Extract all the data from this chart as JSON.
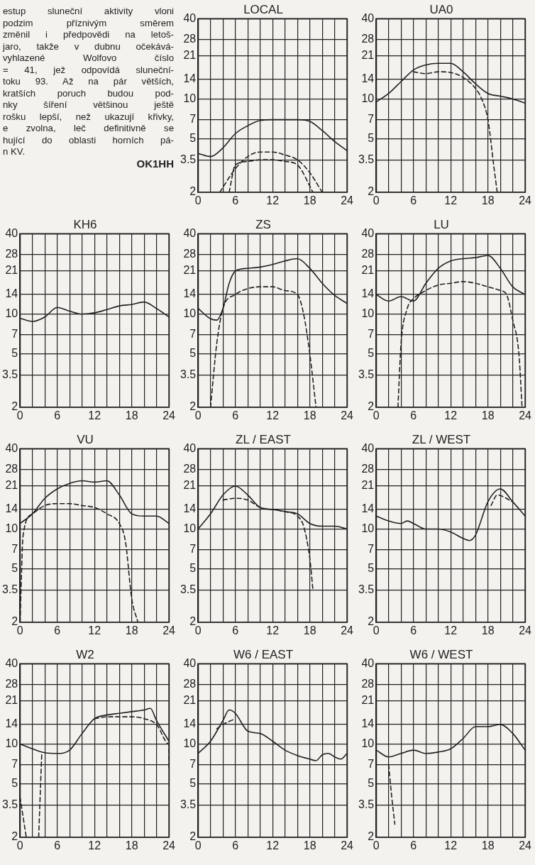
{
  "chart_data": [
    {
      "type": "other",
      "annotations": [
        "estup sluneční aktivity vloni",
        "podzim příznivým směrem",
        "změnil i předpovědi na letoš-",
        "jaro, takže v dubnu očekává-",
        "vyhlazené Wolfovo číslo",
        "= 41, jež odpovídá sluneční-",
        "toku 93. Až na pár větších,",
        "kratších poruch budou pod-",
        "nky šíření většinou ještě",
        "rošku lepší, než ukazují křivky,",
        "e zvolna, leč definitivně se",
        "hující do oblasti horních pá-",
        "n KV.",
        "OK1HH"
      ]
    },
    {
      "type": "line",
      "title": "LOCAL",
      "xlim": [
        0,
        24
      ],
      "ylim": [
        2,
        40
      ],
      "log": "y",
      "grid": true,
      "marker": "none",
      "xticks": [
        0,
        {
          "value": 2,
          "label": null
        },
        {
          "value": 4,
          "label": null
        },
        6,
        {
          "value": 8,
          "label": null
        },
        {
          "value": 10,
          "label": null
        },
        12,
        {
          "value": 14,
          "label": null
        },
        {
          "value": 16,
          "label": null
        },
        18,
        {
          "value": 20,
          "label": null
        },
        {
          "value": 22,
          "label": null
        },
        24
      ],
      "yticks": [
        2,
        3.5,
        5,
        7,
        10,
        14,
        21,
        28,
        40
      ],
      "series": [
        {
          "color": "#222222",
          "line_style": "solid",
          "x": [
            0,
            2,
            4,
            6,
            8,
            10,
            12,
            14,
            16,
            18,
            20,
            22,
            24
          ],
          "values": [
            3.9,
            3.7,
            4.3,
            5.5,
            6.3,
            6.9,
            7,
            7,
            7,
            6.8,
            5.8,
            4.8,
            4.1
          ]
        },
        {
          "color": "#222222",
          "line_style": "dashed",
          "x": [
            3.5,
            6,
            8,
            10,
            12,
            14,
            16,
            18,
            20
          ],
          "values": [
            2,
            3,
            3.7,
            4,
            4,
            3.8,
            3.5,
            2.8,
            2
          ]
        },
        {
          "color": "#222222",
          "line_style": "dashed",
          "x": [
            5,
            6,
            8,
            10,
            12,
            14,
            16,
            18.5
          ],
          "values": [
            2,
            3.2,
            3.4,
            3.5,
            3.5,
            3.4,
            3.2,
            2
          ]
        }
      ]
    },
    {
      "type": "line",
      "title": "UA0",
      "xlim": [
        0,
        24
      ],
      "ylim": [
        2,
        40
      ],
      "log": "y",
      "grid": true,
      "marker": "none",
      "xticks": [
        0,
        {
          "value": 2,
          "label": null
        },
        {
          "value": 4,
          "label": null
        },
        6,
        {
          "value": 8,
          "label": null
        },
        {
          "value": 10,
          "label": null
        },
        12,
        {
          "value": 14,
          "label": null
        },
        {
          "value": 16,
          "label": null
        },
        18,
        {
          "value": 20,
          "label": null
        },
        {
          "value": 22,
          "label": null
        },
        24
      ],
      "yticks": [
        2,
        3.5,
        5,
        7,
        10,
        14,
        21,
        28,
        40
      ],
      "series": [
        {
          "color": "#222222",
          "line_style": "solid",
          "x": [
            0,
            2,
            4,
            6,
            8,
            10,
            12,
            14,
            16,
            18,
            20,
            22,
            24
          ],
          "values": [
            9.5,
            11,
            13.5,
            16.5,
            18,
            18.5,
            18.5,
            16,
            13,
            11,
            10.5,
            10,
            9.3
          ]
        },
        {
          "color": "#222222",
          "line_style": "dashed",
          "x": [
            6,
            8,
            10,
            12,
            14,
            16,
            17,
            18,
            19,
            19.5
          ],
          "values": [
            16,
            15.5,
            16,
            15.8,
            14.5,
            12,
            10,
            7,
            3,
            2
          ]
        }
      ]
    },
    {
      "type": "line",
      "title": "KH6",
      "xlim": [
        0,
        24
      ],
      "ylim": [
        2,
        40
      ],
      "log": "y",
      "grid": true,
      "marker": "none",
      "xticks": [
        0,
        {
          "value": 2,
          "label": null
        },
        {
          "value": 4,
          "label": null
        },
        6,
        {
          "value": 8,
          "label": null
        },
        {
          "value": 10,
          "label": null
        },
        12,
        {
          "value": 14,
          "label": null
        },
        {
          "value": 16,
          "label": null
        },
        18,
        {
          "value": 20,
          "label": null
        },
        {
          "value": 22,
          "label": null
        },
        24
      ],
      "yticks": [
        2,
        3.5,
        5,
        7,
        10,
        14,
        21,
        28,
        40
      ],
      "series": [
        {
          "color": "#222222",
          "line_style": "solid",
          "x": [
            0,
            2,
            4,
            6,
            8,
            10,
            12,
            14,
            16,
            18,
            20,
            22,
            24
          ],
          "values": [
            9.3,
            8.8,
            9.5,
            11.2,
            10.5,
            10,
            10.2,
            10.8,
            11.5,
            11.8,
            12.3,
            11,
            9.5
          ]
        }
      ]
    },
    {
      "type": "line",
      "title": "ZS",
      "xlim": [
        0,
        24
      ],
      "ylim": [
        2,
        40
      ],
      "log": "y",
      "grid": true,
      "marker": "none",
      "xticks": [
        0,
        {
          "value": 2,
          "label": null
        },
        {
          "value": 4,
          "label": null
        },
        6,
        {
          "value": 8,
          "label": null
        },
        {
          "value": 10,
          "label": null
        },
        12,
        {
          "value": 14,
          "label": null
        },
        {
          "value": 16,
          "label": null
        },
        18,
        {
          "value": 20,
          "label": null
        },
        {
          "value": 22,
          "label": null
        },
        24
      ],
      "yticks": [
        2,
        3.5,
        5,
        7,
        10,
        14,
        21,
        28,
        40
      ],
      "series": [
        {
          "color": "#222222",
          "line_style": "solid",
          "x": [
            0,
            2,
            3,
            4,
            5,
            6,
            8,
            10,
            12,
            14,
            16,
            18,
            20,
            22,
            24
          ],
          "values": [
            11,
            9.2,
            9,
            11,
            17,
            21,
            22,
            22.5,
            23.5,
            25,
            26,
            22,
            17,
            13.8,
            12
          ]
        },
        {
          "color": "#222222",
          "line_style": "dashed",
          "x": [
            2,
            3,
            4,
            6,
            8,
            10,
            12,
            14,
            16,
            17,
            18,
            19
          ],
          "values": [
            2,
            6,
            11,
            14,
            15.5,
            16,
            16,
            15,
            14,
            10,
            5,
            2
          ]
        }
      ]
    },
    {
      "type": "line",
      "title": "LU",
      "xlim": [
        0,
        24
      ],
      "ylim": [
        2,
        40
      ],
      "log": "y",
      "grid": true,
      "marker": "none",
      "xticks": [
        0,
        {
          "value": 2,
          "label": null
        },
        {
          "value": 4,
          "label": null
        },
        6,
        {
          "value": 8,
          "label": null
        },
        {
          "value": 10,
          "label": null
        },
        12,
        {
          "value": 14,
          "label": null
        },
        {
          "value": 16,
          "label": null
        },
        18,
        {
          "value": 20,
          "label": null
        },
        {
          "value": 22,
          "label": null
        },
        24
      ],
      "yticks": [
        2,
        3.5,
        5,
        7,
        10,
        14,
        21,
        28,
        40
      ],
      "series": [
        {
          "color": "#222222",
          "line_style": "solid",
          "x": [
            0,
            2,
            4,
            6,
            8,
            10,
            12,
            14,
            16,
            18,
            20,
            22,
            24
          ],
          "values": [
            14,
            12.5,
            13.5,
            12.5,
            17,
            22,
            25,
            26,
            26.5,
            27.5,
            22,
            16,
            14
          ]
        },
        {
          "color": "#222222",
          "line_style": "dashed",
          "x": [
            3.5,
            4,
            5,
            6,
            8,
            10,
            12,
            14,
            16,
            18,
            20,
            21,
            22,
            23,
            23.5
          ],
          "values": [
            2,
            6,
            11,
            13,
            15,
            16.5,
            17,
            17.5,
            17,
            16,
            15,
            14,
            9,
            5,
            2
          ]
        }
      ]
    },
    {
      "type": "line",
      "title": "VU",
      "xlim": [
        0,
        24
      ],
      "ylim": [
        2,
        40
      ],
      "log": "y",
      "grid": true,
      "marker": "none",
      "xticks": [
        0,
        {
          "value": 2,
          "label": null
        },
        {
          "value": 4,
          "label": null
        },
        6,
        {
          "value": 8,
          "label": null
        },
        {
          "value": 10,
          "label": null
        },
        12,
        {
          "value": 14,
          "label": null
        },
        {
          "value": 16,
          "label": null
        },
        18,
        {
          "value": 20,
          "label": null
        },
        {
          "value": 22,
          "label": null
        },
        24
      ],
      "yticks": [
        2,
        3.5,
        5,
        7,
        10,
        14,
        21,
        28,
        40
      ],
      "series": [
        {
          "color": "#222222",
          "line_style": "solid",
          "x": [
            0,
            2,
            4,
            6,
            8,
            10,
            12,
            14,
            16,
            18,
            20,
            22,
            24
          ],
          "values": [
            11,
            13,
            17,
            20,
            22,
            23,
            22.5,
            23,
            18,
            13,
            12.5,
            12.5,
            11
          ]
        },
        {
          "color": "#222222",
          "line_style": "dashed",
          "x": [
            0,
            0.5,
            2,
            4,
            6,
            8,
            10,
            12,
            14,
            16,
            17,
            18,
            19
          ],
          "values": [
            2,
            9,
            13,
            15,
            15.5,
            15.5,
            15,
            14.5,
            13,
            11,
            8,
            3,
            2
          ]
        }
      ]
    },
    {
      "type": "line",
      "title": "ZL / EAST",
      "xlim": [
        0,
        24
      ],
      "ylim": [
        2,
        40
      ],
      "log": "y",
      "grid": true,
      "marker": "none",
      "xticks": [
        0,
        {
          "value": 2,
          "label": null
        },
        {
          "value": 4,
          "label": null
        },
        6,
        {
          "value": 8,
          "label": null
        },
        {
          "value": 10,
          "label": null
        },
        12,
        {
          "value": 14,
          "label": null
        },
        {
          "value": 16,
          "label": null
        },
        18,
        {
          "value": 20,
          "label": null
        },
        {
          "value": 22,
          "label": null
        },
        24
      ],
      "yticks": [
        2,
        3.5,
        5,
        7,
        10,
        14,
        21,
        28,
        40
      ],
      "series": [
        {
          "color": "#222222",
          "line_style": "solid",
          "x": [
            0,
            2,
            4,
            6,
            8,
            10,
            12,
            14,
            16,
            18,
            20,
            22,
            24
          ],
          "values": [
            10,
            13,
            18,
            21,
            18,
            14.5,
            14,
            13.5,
            13,
            11,
            10.5,
            10.5,
            10
          ]
        },
        {
          "color": "#222222",
          "line_style": "dashed",
          "x": [
            4,
            6,
            8,
            10,
            12,
            14,
            16,
            17,
            18,
            18.5
          ],
          "values": [
            16.5,
            17,
            16.5,
            14.5,
            14,
            13.5,
            12.5,
            10.5,
            6,
            3.5
          ]
        }
      ]
    },
    {
      "type": "line",
      "title": "ZL / WEST",
      "xlim": [
        0,
        24
      ],
      "ylim": [
        2,
        40
      ],
      "log": "y",
      "grid": true,
      "marker": "none",
      "xticks": [
        0,
        {
          "value": 2,
          "label": null
        },
        {
          "value": 4,
          "label": null
        },
        6,
        {
          "value": 8,
          "label": null
        },
        {
          "value": 10,
          "label": null
        },
        12,
        {
          "value": 14,
          "label": null
        },
        {
          "value": 16,
          "label": null
        },
        18,
        {
          "value": 20,
          "label": null
        },
        {
          "value": 22,
          "label": null
        },
        24
      ],
      "yticks": [
        2,
        3.5,
        5,
        7,
        10,
        14,
        21,
        28,
        40
      ],
      "series": [
        {
          "color": "#222222",
          "line_style": "solid",
          "x": [
            0,
            2,
            4,
            5,
            6,
            8,
            10,
            12,
            14,
            15,
            16,
            18,
            20,
            22,
            24
          ],
          "values": [
            12.5,
            11.5,
            11,
            11.5,
            11,
            10,
            10,
            9.5,
            8.5,
            8.2,
            9,
            16,
            20,
            16,
            12.5
          ]
        },
        {
          "color": "#222222",
          "line_style": "dashed",
          "x": [
            18.5,
            19.5,
            22
          ],
          "values": [
            15,
            18,
            16
          ]
        }
      ]
    },
    {
      "type": "line",
      "title": "W2",
      "xlim": [
        0,
        24
      ],
      "ylim": [
        2,
        40
      ],
      "log": "y",
      "grid": true,
      "marker": "none",
      "xticks": [
        0,
        {
          "value": 2,
          "label": null
        },
        {
          "value": 4,
          "label": null
        },
        6,
        {
          "value": 8,
          "label": null
        },
        {
          "value": 10,
          "label": null
        },
        12,
        {
          "value": 14,
          "label": null
        },
        {
          "value": 16,
          "label": null
        },
        18,
        {
          "value": 20,
          "label": null
        },
        {
          "value": 22,
          "label": null
        },
        24
      ],
      "yticks": [
        2,
        3.5,
        5,
        7,
        10,
        14,
        21,
        28,
        40
      ],
      "series": [
        {
          "color": "#222222",
          "line_style": "solid",
          "x": [
            0,
            2,
            4,
            6,
            8,
            10,
            12,
            14,
            16,
            18,
            20,
            21,
            22,
            24
          ],
          "values": [
            10,
            9.2,
            8.6,
            8.5,
            9,
            12,
            15.5,
            16.5,
            17,
            17.5,
            18,
            18.5,
            15,
            10.5
          ]
        },
        {
          "color": "#222222",
          "line_style": "dashed",
          "x": [
            12,
            14,
            16,
            18,
            20,
            22,
            24,
            24
          ],
          "values": [
            15.5,
            16,
            16,
            16,
            15.5,
            14,
            10,
            6.5
          ]
        },
        {
          "color": "#222222",
          "line_style": "dashed",
          "x": [
            0,
            1
          ],
          "values": [
            4,
            2
          ]
        },
        {
          "color": "#222222",
          "line_style": "dashed",
          "x": [
            3,
            3.5
          ],
          "values": [
            2,
            8.5
          ]
        }
      ]
    },
    {
      "type": "line",
      "title": "W6 / EAST",
      "xlim": [
        0,
        24
      ],
      "ylim": [
        2,
        40
      ],
      "log": "y",
      "grid": true,
      "marker": "none",
      "xticks": [
        0,
        {
          "value": 2,
          "label": null
        },
        {
          "value": 4,
          "label": null
        },
        6,
        {
          "value": 8,
          "label": null
        },
        {
          "value": 10,
          "label": null
        },
        12,
        {
          "value": 14,
          "label": null
        },
        {
          "value": 16,
          "label": null
        },
        18,
        {
          "value": 20,
          "label": null
        },
        {
          "value": 22,
          "label": null
        },
        24
      ],
      "yticks": [
        2,
        3.5,
        5,
        7,
        10,
        14,
        21,
        28,
        40
      ],
      "series": [
        {
          "color": "#222222",
          "line_style": "solid",
          "x": [
            0,
            2,
            4,
            5,
            6,
            8,
            10,
            12,
            14,
            16,
            18,
            19,
            20,
            21,
            22,
            23,
            24
          ],
          "values": [
            8.5,
            10.5,
            15,
            18,
            17,
            12.5,
            12,
            10.5,
            9,
            8.2,
            7.7,
            7.5,
            8.3,
            8.5,
            8,
            7.7,
            8.5
          ]
        },
        {
          "color": "#222222",
          "line_style": "dashed",
          "x": [
            3,
            4,
            6
          ],
          "values": [
            13,
            14,
            15.5
          ]
        }
      ]
    },
    {
      "type": "line",
      "title": "W6 / WEST",
      "xlim": [
        0,
        24
      ],
      "ylim": [
        2,
        40
      ],
      "log": "y",
      "grid": true,
      "marker": "none",
      "xticks": [
        0,
        {
          "value": 2,
          "label": null
        },
        {
          "value": 4,
          "label": null
        },
        6,
        {
          "value": 8,
          "label": null
        },
        {
          "value": 10,
          "label": null
        },
        12,
        {
          "value": 14,
          "label": null
        },
        {
          "value": 16,
          "label": null
        },
        18,
        {
          "value": 20,
          "label": null
        },
        {
          "value": 22,
          "label": null
        },
        24
      ],
      "yticks": [
        2,
        3.5,
        5,
        7,
        10,
        14,
        21,
        28,
        40
      ],
      "series": [
        {
          "color": "#222222",
          "line_style": "solid",
          "x": [
            0,
            2,
            4,
            6,
            8,
            10,
            12,
            14,
            16,
            18,
            20,
            22,
            24
          ],
          "values": [
            9,
            8,
            8.5,
            9,
            8.5,
            8.7,
            9.2,
            11,
            13.5,
            13.5,
            14,
            12,
            9
          ]
        },
        {
          "color": "#222222",
          "line_style": "dashed",
          "x": [
            2,
            2.5,
            3
          ],
          "values": [
            7,
            4,
            2.5
          ]
        }
      ]
    }
  ]
}
